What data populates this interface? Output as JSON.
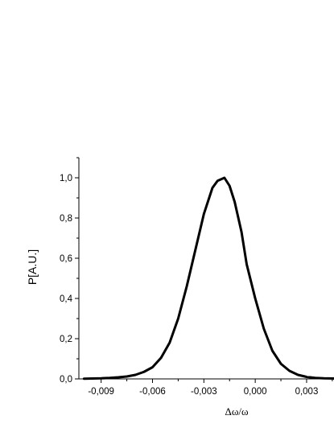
{
  "chart_data": {
    "type": "line",
    "title": "",
    "xlabel": "Δω/ω",
    "ylabel": "P[A.U.]",
    "xlim": [
      -0.0103,
      0.0046
    ],
    "ylim": [
      0.0,
      1.1
    ],
    "xticks": [
      -0.009,
      -0.006,
      -0.003,
      0.0,
      0.003
    ],
    "xtick_labels": [
      "-0,009",
      "-0,006",
      "-0,003",
      "0,000",
      "0,003"
    ],
    "yticks": [
      0.0,
      0.2,
      0.4,
      0.6,
      0.8,
      1.0
    ],
    "ytick_labels": [
      "0,0",
      "0,2",
      "0,4",
      "0,6",
      "0,8",
      "1,0"
    ],
    "grid": false,
    "legend": "none",
    "series": [
      {
        "color": "#000000",
        "x": [
          -0.01,
          -0.0095,
          -0.009,
          -0.0085,
          -0.008,
          -0.0075,
          -0.007,
          -0.0065,
          -0.006,
          -0.0055,
          -0.005,
          -0.0045,
          -0.004,
          -0.0035,
          -0.003,
          -0.0025,
          -0.0022,
          -0.0018,
          -0.0015,
          -0.0012,
          -0.0008,
          -0.0005,
          0.0,
          0.0005,
          0.001,
          0.0015,
          0.002,
          0.0025,
          0.003,
          0.0035,
          0.004,
          0.0046
        ],
        "y": [
          0.001,
          0.002,
          0.003,
          0.005,
          0.008,
          0.012,
          0.02,
          0.035,
          0.058,
          0.105,
          0.18,
          0.3,
          0.46,
          0.64,
          0.82,
          0.95,
          0.985,
          1.0,
          0.96,
          0.88,
          0.73,
          0.57,
          0.4,
          0.25,
          0.14,
          0.075,
          0.04,
          0.02,
          0.01,
          0.005,
          0.003,
          0.002
        ]
      }
    ]
  }
}
